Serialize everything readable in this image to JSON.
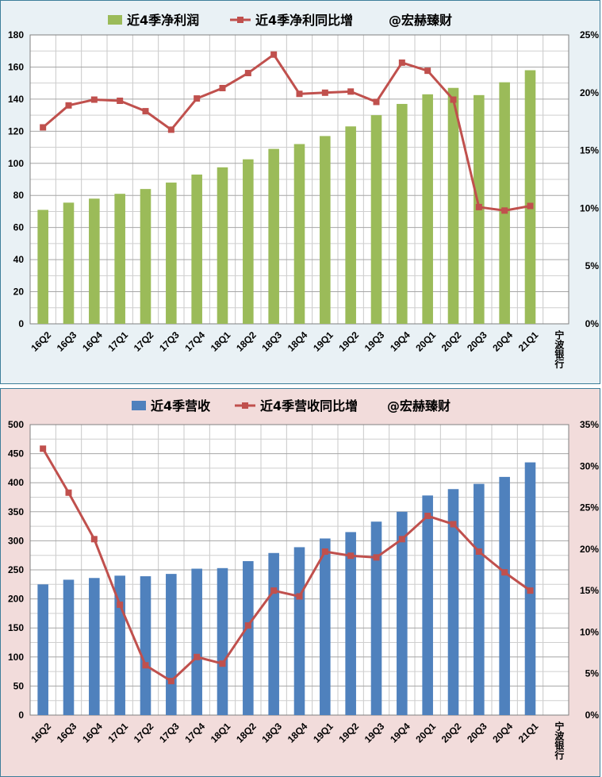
{
  "charts": [
    {
      "id": "top",
      "chart_data": {
        "type": "bar+line",
        "title": "",
        "categories": [
          "16Q2",
          "16Q3",
          "16Q4",
          "17Q1",
          "17Q2",
          "17Q3",
          "17Q4",
          "18Q1",
          "18Q2",
          "18Q3",
          "18Q4",
          "19Q1",
          "19Q2",
          "19Q3",
          "19Q4",
          "20Q1",
          "20Q2",
          "20Q3",
          "20Q4",
          "21Q1",
          "宁波银行"
        ],
        "series": [
          {
            "name": "近4季净利润",
            "type": "bar",
            "axis": "left",
            "color": "#9bbb59",
            "values": [
              71,
              75.5,
              78,
              81,
              84,
              88,
              93,
              97.5,
              102.5,
              109,
              112,
              117,
              123,
              130,
              137,
              143,
              147,
              142.5,
              150.5,
              158,
              null
            ]
          },
          {
            "name": "近4季净利同比增",
            "type": "line",
            "axis": "right",
            "color": "#c0504d",
            "values": [
              17.0,
              18.9,
              19.4,
              19.3,
              18.4,
              16.8,
              19.5,
              20.4,
              21.7,
              23.3,
              19.9,
              20.0,
              20.1,
              19.2,
              22.6,
              21.9,
              19.4,
              10.1,
              9.8,
              10.2,
              null
            ]
          }
        ],
        "watermark": "@宏赫臻财",
        "y_left": {
          "min": 0,
          "max": 180,
          "step": 20,
          "ticks": [
            "0",
            "20",
            "40",
            "60",
            "80",
            "100",
            "120",
            "140",
            "160",
            "180"
          ]
        },
        "y_right": {
          "min": 0,
          "max": 25,
          "step": 5,
          "unit": "%",
          "ticks": [
            "0%",
            "5%",
            "10%",
            "15%",
            "20%",
            "25%"
          ]
        },
        "grid": true,
        "legend_position": "top"
      }
    },
    {
      "id": "bottom",
      "chart_data": {
        "type": "bar+line",
        "title": "",
        "categories": [
          "16Q2",
          "16Q3",
          "16Q4",
          "17Q1",
          "17Q2",
          "17Q3",
          "17Q4",
          "18Q1",
          "18Q2",
          "18Q3",
          "18Q4",
          "19Q1",
          "19Q2",
          "19Q3",
          "19Q4",
          "20Q1",
          "20Q2",
          "20Q3",
          "20Q4",
          "21Q1",
          "宁波银行"
        ],
        "series": [
          {
            "name": "近4季营收",
            "type": "bar",
            "axis": "left",
            "color": "#4f81bd",
            "values": [
              225,
              233,
              236,
              240,
              239,
              243,
              252,
              253,
              265,
              279,
              289,
              304,
              315,
              333,
              350,
              378,
              389,
              398,
              410,
              435,
              null
            ]
          },
          {
            "name": "近4季营收同比增",
            "type": "line",
            "axis": "right",
            "color": "#c0504d",
            "values": [
              32.1,
              26.8,
              21.2,
              13.3,
              6.0,
              4.1,
              7.0,
              6.2,
              10.8,
              15.0,
              14.3,
              19.7,
              19.2,
              19.0,
              21.2,
              24.0,
              23.0,
              19.7,
              17.2,
              15.0,
              null
            ]
          }
        ],
        "watermark": "@宏赫臻财",
        "y_left": {
          "min": 0,
          "max": 500,
          "step": 50,
          "ticks": [
            "0",
            "50",
            "100",
            "150",
            "200",
            "250",
            "300",
            "350",
            "400",
            "450",
            "500"
          ]
        },
        "y_right": {
          "min": 0,
          "max": 35,
          "step": 5,
          "unit": "%",
          "ticks": [
            "0%",
            "5%",
            "10%",
            "15%",
            "20%",
            "25%",
            "30%",
            "35%"
          ]
        },
        "grid": true,
        "legend_position": "top"
      }
    }
  ]
}
